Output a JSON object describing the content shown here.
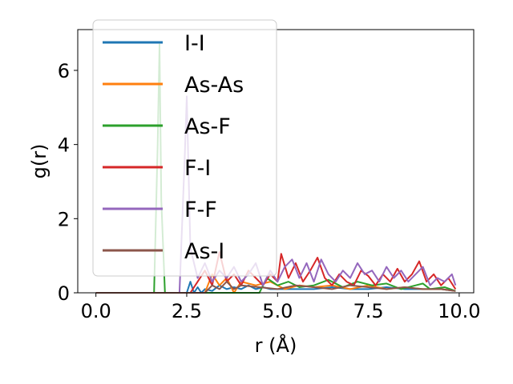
{
  "chart_data": {
    "type": "line",
    "xlabel": "r (Å)",
    "ylabel": "g(r)",
    "xlim": [
      -0.5,
      10.4
    ],
    "ylim": [
      0,
      7.1
    ],
    "xticks": [
      "0.0",
      "2.5",
      "5.0",
      "7.5",
      "10.0"
    ],
    "xtick_values": [
      0,
      2.5,
      5,
      7.5,
      10
    ],
    "yticks": [
      "0",
      "2",
      "4",
      "6"
    ],
    "ytick_values": [
      0,
      2,
      4,
      6
    ],
    "legend_position": "upper-left",
    "grid": false,
    "series": [
      {
        "name": "I-I",
        "color": "#1f77b4",
        "x": [
          0,
          2.5,
          2.6,
          2.7,
          2.8,
          2.9,
          3.0,
          3.2,
          3.4,
          3.6,
          3.8,
          4.0,
          4.2,
          4.4,
          4.6,
          4.8,
          5.0,
          5.5,
          6.0,
          6.5,
          7.0,
          7.5,
          8.0,
          8.5,
          9.0,
          9.5,
          9.9
        ],
        "y": [
          0,
          0,
          0.3,
          0,
          0.15,
          0,
          0.1,
          0.05,
          0.2,
          0.1,
          0.15,
          0.1,
          0.2,
          0.1,
          0.15,
          0.1,
          0.1,
          0.1,
          0.1,
          0.15,
          0.1,
          0.1,
          0.15,
          0.1,
          0.1,
          0.1,
          0.05
        ]
      },
      {
        "name": "As-As",
        "color": "#ff7f0e",
        "x": [
          0,
          3.0,
          3.2,
          3.4,
          3.6,
          3.8,
          4.0,
          4.4,
          4.8,
          5.2,
          5.6,
          6.0,
          6.5,
          7.0,
          7.5,
          8.0,
          8.5,
          9.0,
          9.5,
          9.9
        ],
        "y": [
          0,
          0,
          0.5,
          0.2,
          0.4,
          0,
          0.3,
          0.2,
          0.3,
          0.1,
          0.2,
          0.15,
          0.2,
          0.1,
          0.2,
          0.1,
          0.15,
          0.1,
          0.1,
          0.05
        ]
      },
      {
        "name": "As-F",
        "color": "#2ca02c",
        "x": [
          0,
          1.6,
          1.7,
          1.75,
          1.8,
          1.9,
          4.5,
          4.7,
          5.0,
          5.3,
          5.6,
          6.0,
          6.4,
          6.8,
          7.2,
          7.6,
          8.0,
          8.4,
          8.8,
          9.0,
          9.2,
          9.6,
          9.9
        ],
        "y": [
          0,
          0,
          4.0,
          6.7,
          2.5,
          0,
          0,
          0.4,
          0.2,
          0.3,
          0.15,
          0.2,
          0.35,
          0.15,
          0.3,
          0.2,
          0.25,
          0.1,
          0.2,
          0.25,
          0.1,
          0.15,
          0.05
        ]
      },
      {
        "name": "F-I",
        "color": "#d62728",
        "x": [
          0,
          2.6,
          2.8,
          3.0,
          3.2,
          3.4,
          3.6,
          3.8,
          4.0,
          4.2,
          4.4,
          4.6,
          4.8,
          5.0,
          5.1,
          5.3,
          5.5,
          5.7,
          5.9,
          6.1,
          6.3,
          6.5,
          6.7,
          6.9,
          7.1,
          7.3,
          7.5,
          7.7,
          7.9,
          8.1,
          8.3,
          8.5,
          8.7,
          8.9,
          9.1,
          9.3,
          9.5,
          9.7,
          9.9
        ],
        "y": [
          0,
          0,
          0.3,
          0.6,
          0.2,
          1.1,
          0.3,
          0.5,
          0.2,
          0.6,
          0.4,
          0.2,
          0.5,
          0.3,
          1.05,
          0.4,
          0.8,
          0.3,
          0.6,
          0.95,
          0.4,
          0.2,
          0.5,
          0.3,
          0.2,
          0.6,
          0.45,
          0.2,
          0.5,
          0.3,
          0.65,
          0.3,
          0.5,
          0.85,
          0.3,
          0.5,
          0.2,
          0.4,
          0.1
        ]
      },
      {
        "name": "F-F",
        "color": "#9467bd",
        "x": [
          0,
          2.3,
          2.45,
          2.5,
          2.6,
          2.8,
          3.0,
          3.2,
          3.4,
          3.6,
          3.8,
          4.0,
          4.2,
          4.4,
          4.6,
          4.8,
          5.0,
          5.2,
          5.4,
          5.6,
          5.8,
          6.0,
          6.2,
          6.4,
          6.6,
          6.8,
          7.0,
          7.2,
          7.4,
          7.6,
          7.8,
          8.0,
          8.2,
          8.4,
          8.6,
          8.8,
          9.0,
          9.2,
          9.4,
          9.6,
          9.8,
          9.9
        ],
        "y": [
          0,
          0,
          3.8,
          5.3,
          1.2,
          0.4,
          0.8,
          0.3,
          0.6,
          0.4,
          0.7,
          0.3,
          0.5,
          0.8,
          0.2,
          0.6,
          0.3,
          0.7,
          0.9,
          0.4,
          0.8,
          0.3,
          0.9,
          0.5,
          0.3,
          0.6,
          0.4,
          0.8,
          0.5,
          0.6,
          0.3,
          0.7,
          0.4,
          0.6,
          0.3,
          0.5,
          0.7,
          0.2,
          0.4,
          0.3,
          0.5,
          0.2
        ]
      },
      {
        "name": "As-I",
        "color": "#8c564b",
        "x": [
          0,
          3.0,
          3.2,
          3.4,
          3.6,
          3.8,
          4.0,
          4.5,
          5.0,
          5.5,
          6.0,
          6.5,
          7.0,
          7.5,
          8.0,
          8.5,
          9.0,
          9.5,
          9.9
        ],
        "y": [
          0,
          0,
          0.2,
          0.1,
          0.3,
          0.1,
          0.2,
          0.15,
          0.1,
          0.2,
          0.15,
          0.1,
          0.2,
          0.15,
          0.1,
          0.15,
          0.1,
          0.1,
          0.05
        ]
      }
    ]
  }
}
